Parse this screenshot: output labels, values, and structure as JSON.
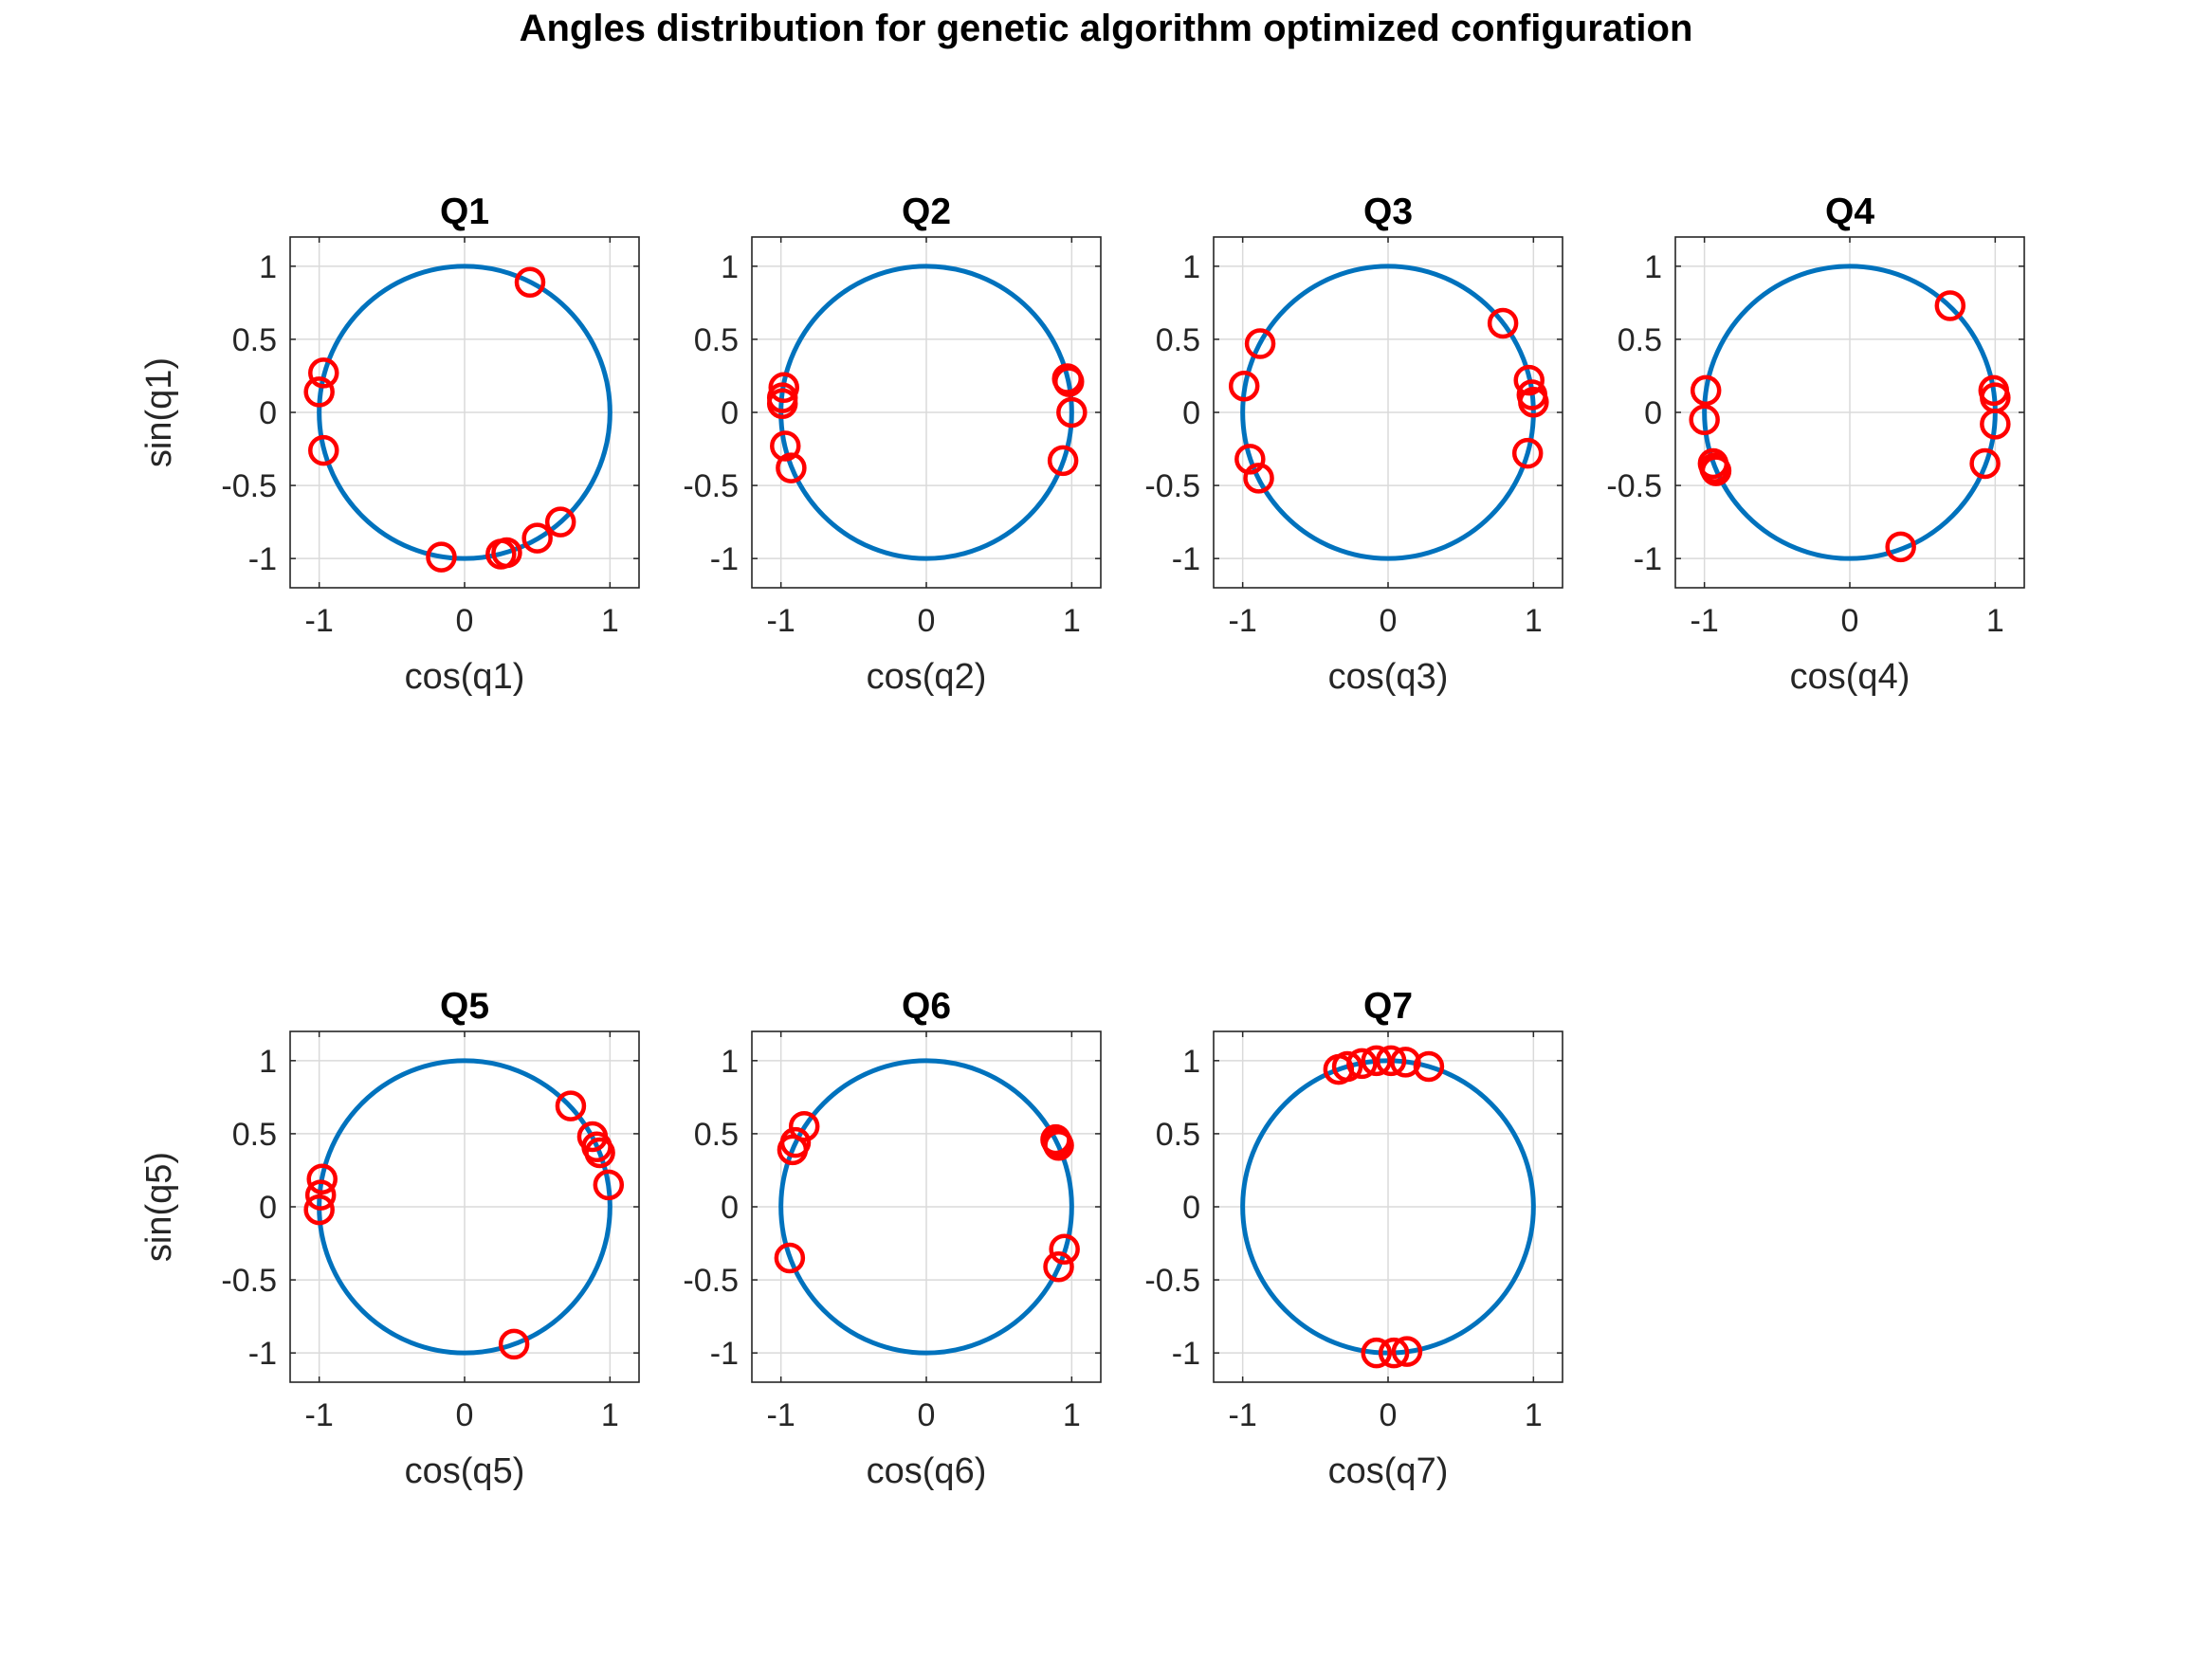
{
  "figure": {
    "title": "Angles distribution for genetic algorithm optimized configuration"
  },
  "style": {
    "circle_color": "#0072BD",
    "marker_color": "#FF0000",
    "grid_color": "#DADADA",
    "axes_color": "#262626"
  },
  "chart_data": [
    {
      "type": "scatter",
      "title": "Q1",
      "xlabel": "cos(q1)",
      "ylabel": "sin(q1)",
      "xlim": [
        -1.2,
        1.2
      ],
      "ylim": [
        -1.2,
        1.2
      ],
      "grid": true,
      "xticks": [
        -1,
        0,
        1
      ],
      "yticks": [
        -1,
        -0.5,
        0,
        0.5,
        1
      ],
      "xtick_labels": [
        "-1",
        "0",
        "1"
      ],
      "ytick_labels": [
        "-1",
        "-0.5",
        "0",
        "0.5",
        "1"
      ],
      "circle": {
        "radius": 1
      },
      "points": [
        [
          0.45,
          0.89
        ],
        [
          -0.97,
          0.27
        ],
        [
          -1.0,
          0.14
        ],
        [
          -0.97,
          -0.26
        ],
        [
          -0.16,
          -0.99
        ],
        [
          0.25,
          -0.97
        ],
        [
          0.29,
          -0.96
        ],
        [
          0.5,
          -0.86
        ],
        [
          0.66,
          -0.75
        ]
      ]
    },
    {
      "type": "scatter",
      "title": "Q2",
      "xlabel": "cos(q2)",
      "ylabel": "",
      "xlim": [
        -1.2,
        1.2
      ],
      "ylim": [
        -1.2,
        1.2
      ],
      "grid": true,
      "xticks": [
        -1,
        0,
        1
      ],
      "yticks": [
        -1,
        -0.5,
        0,
        0.5,
        1
      ],
      "xtick_labels": [
        "-1",
        "0",
        "1"
      ],
      "ytick_labels": [
        "-1",
        "-0.5",
        "0",
        "0.5",
        "1"
      ],
      "circle": {
        "radius": 1
      },
      "points": [
        [
          -0.98,
          0.17
        ],
        [
          -0.99,
          0.1
        ],
        [
          -0.99,
          0.06
        ],
        [
          -0.97,
          -0.23
        ],
        [
          -0.93,
          -0.38
        ],
        [
          0.97,
          0.23
        ],
        [
          0.98,
          0.21
        ],
        [
          1.0,
          0.0
        ],
        [
          0.94,
          -0.33
        ]
      ]
    },
    {
      "type": "scatter",
      "title": "Q3",
      "xlabel": "cos(q3)",
      "ylabel": "",
      "xlim": [
        -1.2,
        1.2
      ],
      "ylim": [
        -1.2,
        1.2
      ],
      "grid": true,
      "xticks": [
        -1,
        0,
        1
      ],
      "yticks": [
        -1,
        -0.5,
        0,
        0.5,
        1
      ],
      "xtick_labels": [
        "-1",
        "0",
        "1"
      ],
      "ytick_labels": [
        "-1",
        "-0.5",
        "0",
        "0.5",
        "1"
      ],
      "circle": {
        "radius": 1
      },
      "points": [
        [
          -0.88,
          0.47
        ],
        [
          -0.99,
          0.18
        ],
        [
          -0.95,
          -0.32
        ],
        [
          -0.89,
          -0.45
        ],
        [
          0.79,
          0.61
        ],
        [
          0.97,
          0.22
        ],
        [
          0.99,
          0.12
        ],
        [
          1.0,
          0.07
        ],
        [
          0.96,
          -0.28
        ]
      ]
    },
    {
      "type": "scatter",
      "title": "Q4",
      "xlabel": "cos(q4)",
      "ylabel": "",
      "xlim": [
        -1.2,
        1.2
      ],
      "ylim": [
        -1.2,
        1.2
      ],
      "grid": true,
      "xticks": [
        -1,
        0,
        1
      ],
      "yticks": [
        -1,
        -0.5,
        0,
        0.5,
        1
      ],
      "xtick_labels": [
        "-1",
        "0",
        "1"
      ],
      "ytick_labels": [
        "-1",
        "-0.5",
        "0",
        "0.5",
        "1"
      ],
      "circle": {
        "radius": 1
      },
      "points": [
        [
          -0.99,
          0.15
        ],
        [
          -1.0,
          -0.05
        ],
        [
          -0.94,
          -0.35
        ],
        [
          -0.93,
          -0.38
        ],
        [
          -0.92,
          -0.4
        ],
        [
          0.69,
          0.73
        ],
        [
          0.99,
          0.15
        ],
        [
          1.0,
          0.1
        ],
        [
          1.0,
          -0.08
        ],
        [
          0.93,
          -0.35
        ],
        [
          0.35,
          -0.92
        ]
      ]
    },
    {
      "type": "scatter",
      "title": "Q5",
      "xlabel": "cos(q5)",
      "ylabel": "sin(q5)",
      "xlim": [
        -1.2,
        1.2
      ],
      "ylim": [
        -1.2,
        1.2
      ],
      "grid": true,
      "xticks": [
        -1,
        0,
        1
      ],
      "yticks": [
        -1,
        -0.5,
        0,
        0.5,
        1
      ],
      "xtick_labels": [
        "-1",
        "0",
        "1"
      ],
      "ytick_labels": [
        "-1",
        "-0.5",
        "0",
        "0.5",
        "1"
      ],
      "circle": {
        "radius": 1
      },
      "points": [
        [
          -0.98,
          0.19
        ],
        [
          -0.99,
          0.08
        ],
        [
          -1.0,
          -0.02
        ],
        [
          0.73,
          0.69
        ],
        [
          0.88,
          0.48
        ],
        [
          0.91,
          0.41
        ],
        [
          0.93,
          0.37
        ],
        [
          0.99,
          0.15
        ],
        [
          0.34,
          -0.94
        ]
      ]
    },
    {
      "type": "scatter",
      "title": "Q6",
      "xlabel": "cos(q6)",
      "ylabel": "",
      "xlim": [
        -1.2,
        1.2
      ],
      "ylim": [
        -1.2,
        1.2
      ],
      "grid": true,
      "xticks": [
        -1,
        0,
        1
      ],
      "yticks": [
        -1,
        -0.5,
        0,
        0.5,
        1
      ],
      "xtick_labels": [
        "-1",
        "0",
        "1"
      ],
      "ytick_labels": [
        "-1",
        "-0.5",
        "0",
        "0.5",
        "1"
      ],
      "circle": {
        "radius": 1
      },
      "points": [
        [
          -0.84,
          0.55
        ],
        [
          -0.9,
          0.44
        ],
        [
          -0.92,
          0.39
        ],
        [
          -0.94,
          -0.35
        ],
        [
          0.89,
          0.46
        ],
        [
          0.9,
          0.44
        ],
        [
          0.91,
          0.42
        ],
        [
          0.95,
          -0.29
        ],
        [
          0.91,
          -0.41
        ]
      ]
    },
    {
      "type": "scatter",
      "title": "Q7",
      "xlabel": "cos(q7)",
      "ylabel": "",
      "xlim": [
        -1.2,
        1.2
      ],
      "ylim": [
        -1.2,
        1.2
      ],
      "grid": true,
      "xticks": [
        -1,
        0,
        1
      ],
      "yticks": [
        -1,
        -0.5,
        0,
        0.5,
        1
      ],
      "xtick_labels": [
        "-1",
        "0",
        "1"
      ],
      "ytick_labels": [
        "-1",
        "-0.5",
        "0",
        "0.5",
        "1"
      ],
      "circle": {
        "radius": 1
      },
      "points": [
        [
          -0.34,
          0.94
        ],
        [
          -0.28,
          0.96
        ],
        [
          -0.18,
          0.98
        ],
        [
          -0.08,
          1.0
        ],
        [
          0.02,
          1.0
        ],
        [
          0.12,
          0.99
        ],
        [
          0.28,
          0.96
        ],
        [
          -0.08,
          -1.0
        ],
        [
          0.04,
          -1.0
        ],
        [
          0.13,
          -0.99
        ]
      ]
    }
  ]
}
